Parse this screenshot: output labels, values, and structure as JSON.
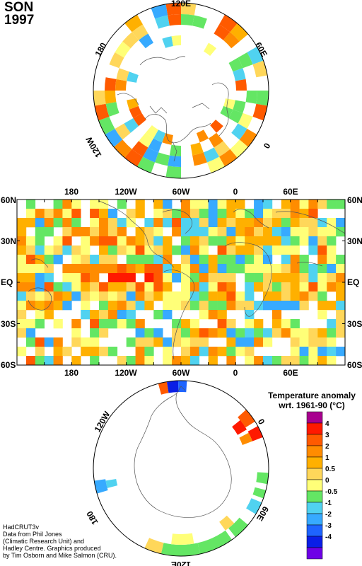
{
  "season": "SON",
  "year": "1997",
  "north_polar": {
    "lon_labels": [
      "120E",
      "60E",
      "0",
      "120W",
      "180"
    ]
  },
  "global": {
    "top_lon_labels": [
      "180",
      "120W",
      "60W",
      "0",
      "60E"
    ],
    "bottom_lon_labels": [
      "180",
      "120W",
      "60W",
      "0",
      "60E"
    ],
    "lat_labels": [
      "60N",
      "30N",
      "EQ",
      "30S",
      "60S"
    ]
  },
  "south_polar": {
    "lon_labels": [
      "120W",
      "0",
      "180",
      "60E",
      "120E"
    ]
  },
  "legend": {
    "title_line1": "Temperature anomaly",
    "title_line2": "wrt. 1961-90  (°C)",
    "bins": [
      {
        "color": "#a8008f"
      },
      {
        "color": "#ff1900"
      },
      {
        "color": "#ff5a00"
      },
      {
        "color": "#ff8c00"
      },
      {
        "color": "#ffb000"
      },
      {
        "color": "#ffd75a"
      },
      {
        "color": "#ffff78"
      },
      {
        "color": "#64e664"
      },
      {
        "color": "#50d2f0"
      },
      {
        "color": "#37aaff"
      },
      {
        "color": "#1e64ff"
      },
      {
        "color": "#0a1ee6"
      },
      {
        "color": "#6e00e6"
      }
    ],
    "tick_labels": [
      "4",
      "3",
      "2",
      "1",
      "0.5",
      "0",
      "-0.5",
      "-1",
      "-2",
      "-3",
      "-4"
    ]
  },
  "credits": [
    "HadCRUT3v",
    "Data from Phil Jones",
    "(Climatic Research Unit) and",
    "Hadley Centre.  Graphics produced",
    "by Tim Osborn and Mike Salmon (CRU)."
  ]
}
